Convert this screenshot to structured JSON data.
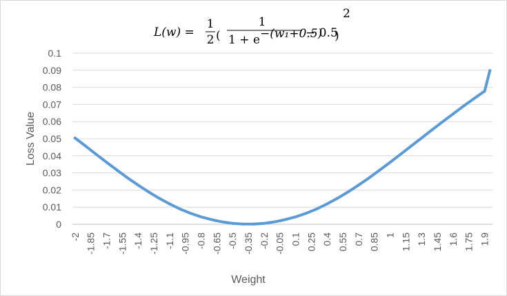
{
  "chart_data": {
    "type": "line",
    "title": {
      "lhs": "L(w) = ",
      "half_numerator": "1",
      "half_denominator": "2",
      "frac_numerator": "1",
      "frac_denominator_base": "1 + e",
      "frac_denominator_exponent": "−(w₁+0.5)",
      "minus_term": "− 0.5",
      "power": "2"
    },
    "xlabel": "Weight",
    "ylabel": "Loss Value",
    "ylim": [
      0,
      0.1
    ],
    "y_ticks": [
      "0",
      "0.01",
      "0.02",
      "0.03",
      "0.04",
      "0.05",
      "0.06",
      "0.07",
      "0.08",
      "0.09",
      "0.1"
    ],
    "x_range": [
      -2,
      1.95
    ],
    "x_step": 0.05,
    "x_tick_labels": [
      "-2",
      "-1.85",
      "-1.7",
      "-1.55",
      "-1.4",
      "-1.25",
      "-1.1",
      "-0.95",
      "-0.8",
      "-0.65",
      "-0.5",
      "-0.35",
      "-0.2",
      "-0.05",
      "0.1",
      "0.25",
      "0.4",
      "0.55",
      "0.7",
      "0.85",
      "1",
      "1.15",
      "1.3",
      "1.45",
      "1.6",
      "1.75",
      "1.9"
    ],
    "grid": true,
    "legend": "none",
    "series": [
      {
        "color": "#5b9bd5",
        "x": [
          -2,
          -1.9,
          -1.8,
          -1.7,
          -1.6,
          -1.5,
          -1.4,
          -1.3,
          -1.2,
          -1.1,
          -1.0,
          -0.9,
          -0.8,
          -0.7,
          -0.6,
          -0.5,
          -0.4,
          -0.3,
          -0.2,
          -0.1,
          0.0,
          0.1,
          0.2,
          0.3,
          0.4,
          0.5,
          0.6,
          0.7,
          0.8,
          0.9,
          1.0,
          1.1,
          1.2,
          1.3,
          1.4,
          1.5,
          1.6,
          1.7,
          1.8,
          1.9,
          1.95
        ],
        "values": [
          0.0504,
          0.0457,
          0.0409,
          0.0362,
          0.0316,
          0.0271,
          0.0229,
          0.0189,
          0.0152,
          0.0119,
          0.0089,
          0.0064,
          0.0043,
          0.0027,
          0.0014,
          0.0005,
          0.0001,
          0.0001,
          0.0005,
          0.0014,
          0.0027,
          0.0043,
          0.0064,
          0.0089,
          0.0119,
          0.0152,
          0.0189,
          0.0229,
          0.0271,
          0.0316,
          0.0362,
          0.0409,
          0.0457,
          0.0504,
          0.0552,
          0.0599,
          0.0645,
          0.0691,
          0.0735,
          0.0778,
          0.0898
        ]
      }
    ]
  }
}
